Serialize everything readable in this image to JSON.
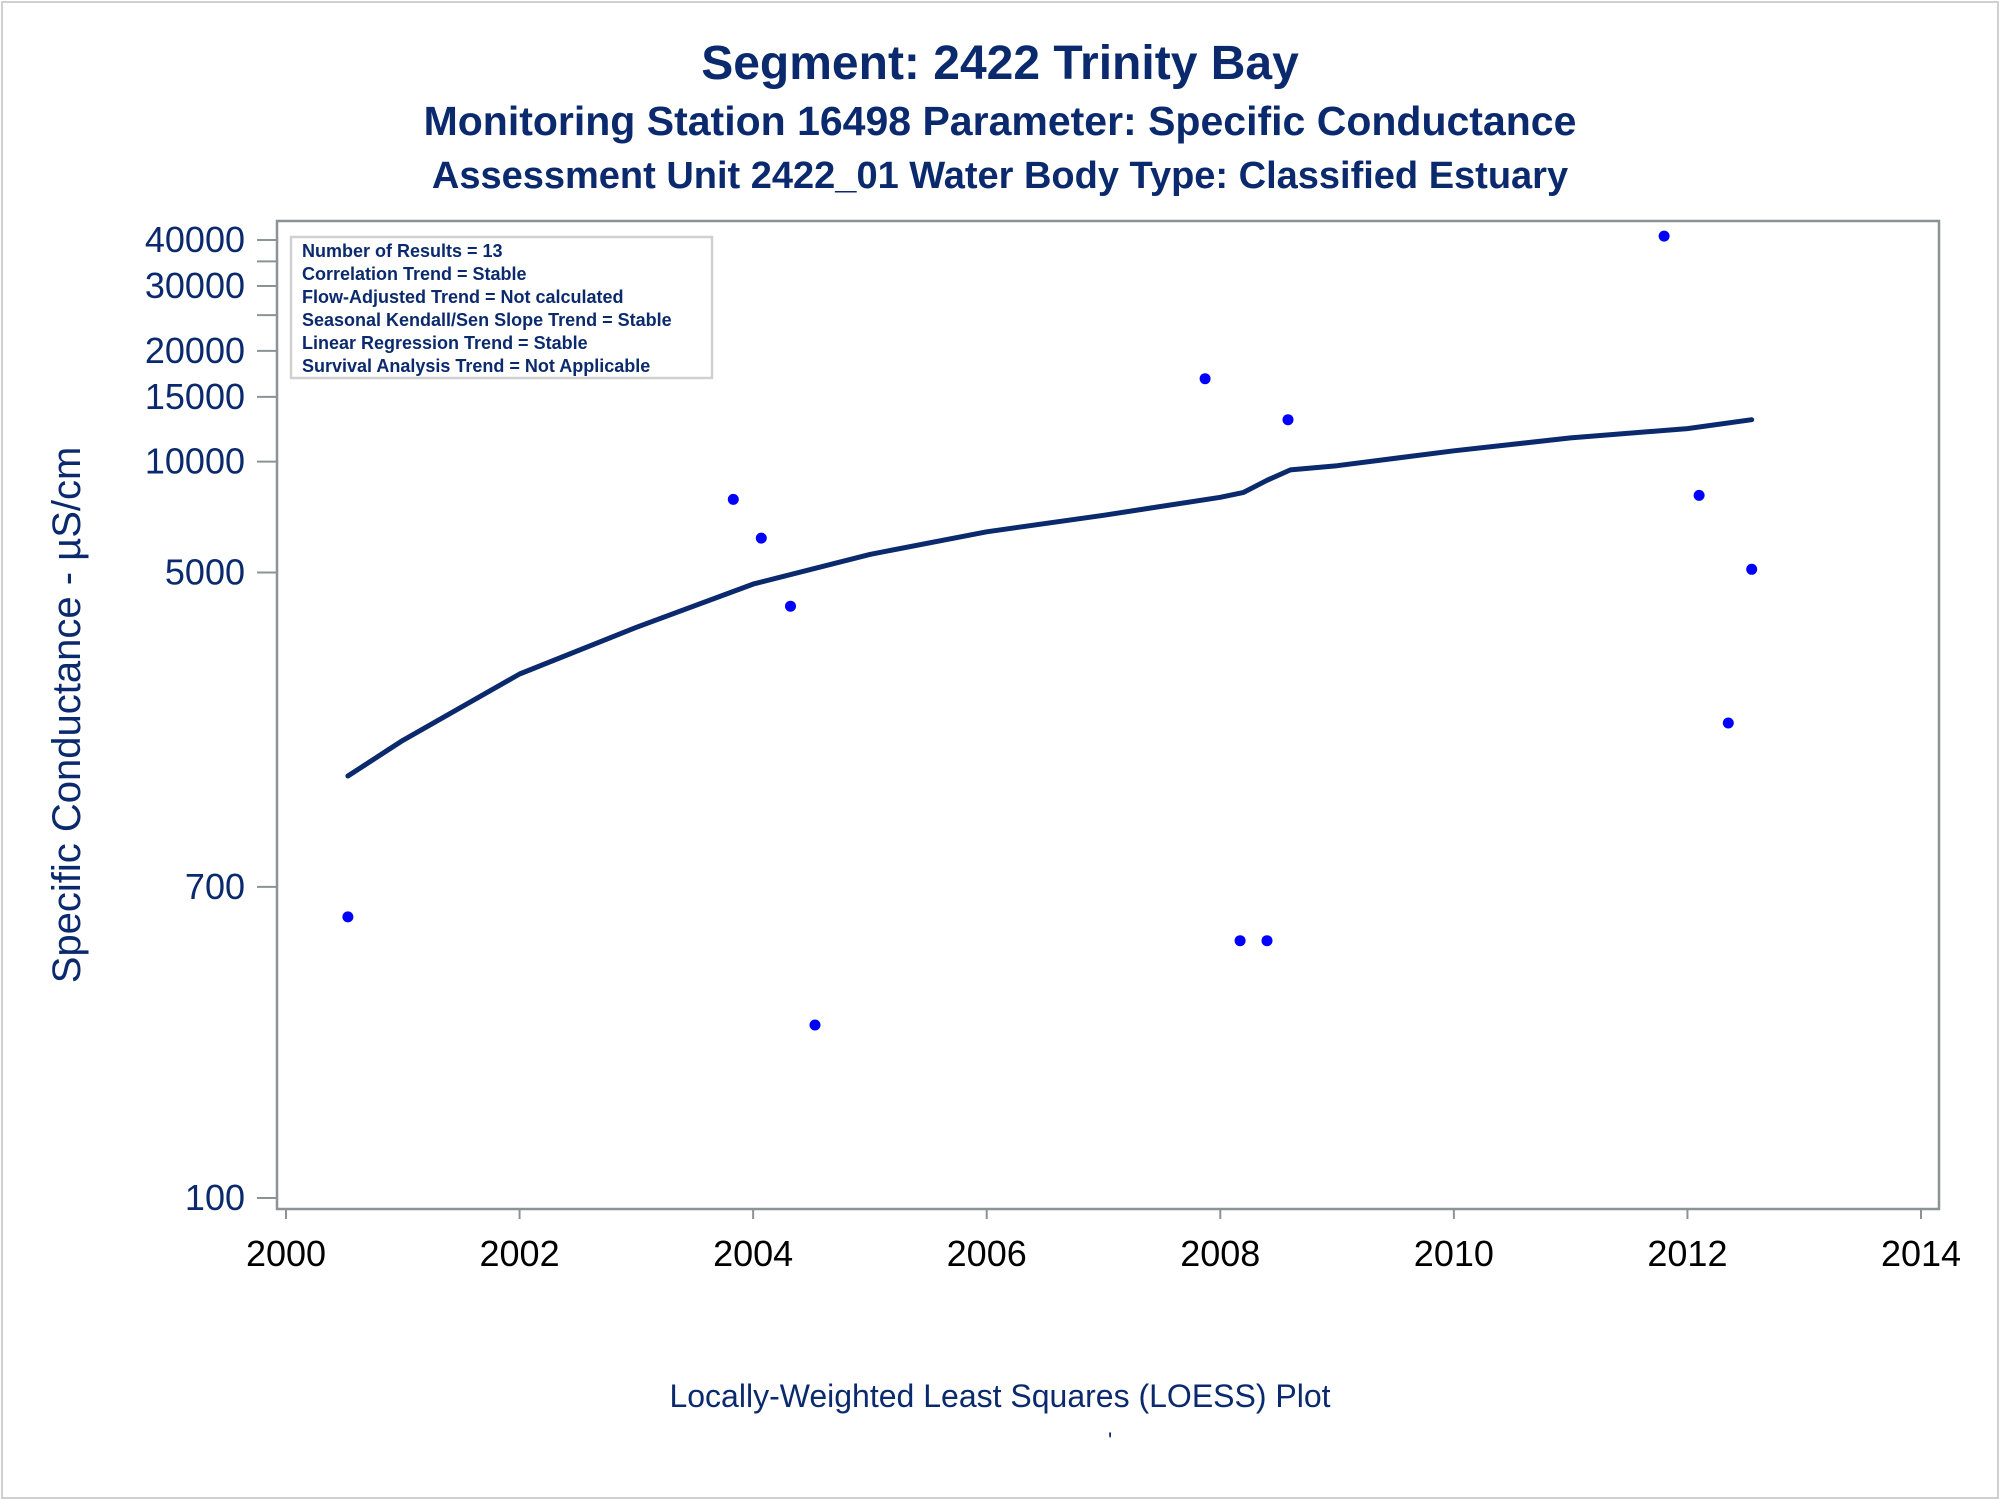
{
  "colors": {
    "text": "#0b2a6e",
    "loess_line": "#0b2a6e",
    "points": "#0000ff",
    "axis_frame": "#8c9396"
  },
  "chart_data": {
    "type": "scatter",
    "title": "Segment: 2422  Trinity Bay",
    "subtitle": "Monitoring Station 16498 Parameter: Specific Conductance",
    "subtitle2": "Assessment Unit 2422_01   Water Body Type: Classified Estuary",
    "xlabel": "",
    "ylabel": "Specific Conductance -  µS/cm",
    "footnote": "Locally-Weighted Least Squares (LOESS) Plot",
    "footnote_mark": "'",
    "y_scale": "log",
    "xlim": [
      2000,
      2014
    ],
    "ylim": [
      90,
      48000
    ],
    "x_ticks": [
      2000,
      2002,
      2004,
      2006,
      2008,
      2010,
      2012,
      2014
    ],
    "x_tick_labels": [
      "2000",
      "2002",
      "2004",
      "2006",
      "2008",
      "2010",
      "2012",
      "2014"
    ],
    "y_ticks": [
      100,
      700,
      5000,
      10000,
      15000,
      20000,
      30000,
      40000
    ],
    "y_tick_labels": [
      "100",
      "700",
      "5000",
      "10000",
      "15000",
      "20000",
      "30000",
      "40000"
    ],
    "y_minor_ticks": [
      35000,
      25000
    ],
    "grid": false,
    "legend": "none",
    "stats_box": {
      "position": "top-left",
      "lines": [
        "Number of Results = 13",
        "Correlation Trend = Stable",
        "Flow-Adjusted Trend = Not calculated",
        "Seasonal Kendall/Sen Slope Trend = Stable",
        "Linear Regression Trend = Stable",
        "Survival Analysis Trend = Not Applicable"
      ]
    },
    "series": [
      {
        "type": "scatter",
        "x": [
          2000.53,
          2003.83,
          2004.07,
          2004.32,
          2004.53,
          2007.87,
          2008.17,
          2008.4,
          2008.58,
          2011.8,
          2012.1,
          2012.35,
          2012.55
        ],
        "y": [
          580,
          7900,
          6200,
          4050,
          295,
          16800,
          500,
          500,
          13000,
          41000,
          8100,
          1950,
          5100
        ]
      },
      {
        "type": "line",
        "x": [
          2000.53,
          2001,
          2002,
          2003,
          2004,
          2005,
          2006,
          2007,
          2008,
          2008.2,
          2008.4,
          2008.6,
          2009,
          2010,
          2011,
          2012,
          2012.55
        ],
        "y": [
          1400,
          1750,
          2650,
          3550,
          4650,
          5600,
          6450,
          7150,
          8000,
          8250,
          8900,
          9500,
          9750,
          10700,
          11600,
          12300,
          13000
        ]
      }
    ]
  }
}
